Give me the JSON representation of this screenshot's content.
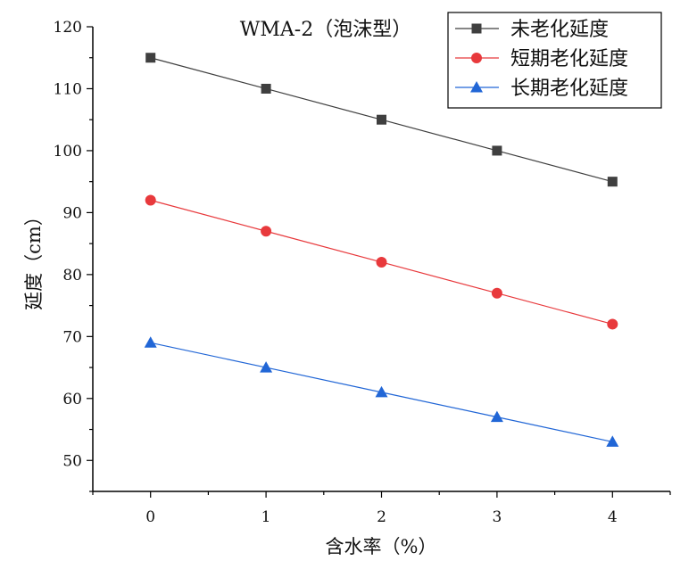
{
  "chart_data": {
    "type": "line",
    "title": "WMA-2（泡沫型）",
    "xlabel": "含水率（%）",
    "ylabel": "延度（cm）",
    "x": [
      0,
      1,
      2,
      3,
      4
    ],
    "xlim": [
      -0.5,
      4.5
    ],
    "ylim": [
      45,
      120
    ],
    "xticks": [
      0,
      1,
      2,
      3,
      4
    ],
    "yticks": [
      50,
      60,
      70,
      80,
      90,
      100,
      110,
      120
    ],
    "legend_position": "top-right",
    "series": [
      {
        "name": "未老化延度",
        "values": [
          115,
          110,
          105,
          100,
          95
        ],
        "color": "#3f3f3f",
        "marker": "square"
      },
      {
        "name": "短期老化延度",
        "values": [
          92,
          87,
          82,
          77,
          72
        ],
        "color": "#e8393c",
        "marker": "circle"
      },
      {
        "name": "长期老化延度",
        "values": [
          69,
          65,
          61,
          57,
          53
        ],
        "color": "#2166d6",
        "marker": "triangle"
      }
    ]
  }
}
